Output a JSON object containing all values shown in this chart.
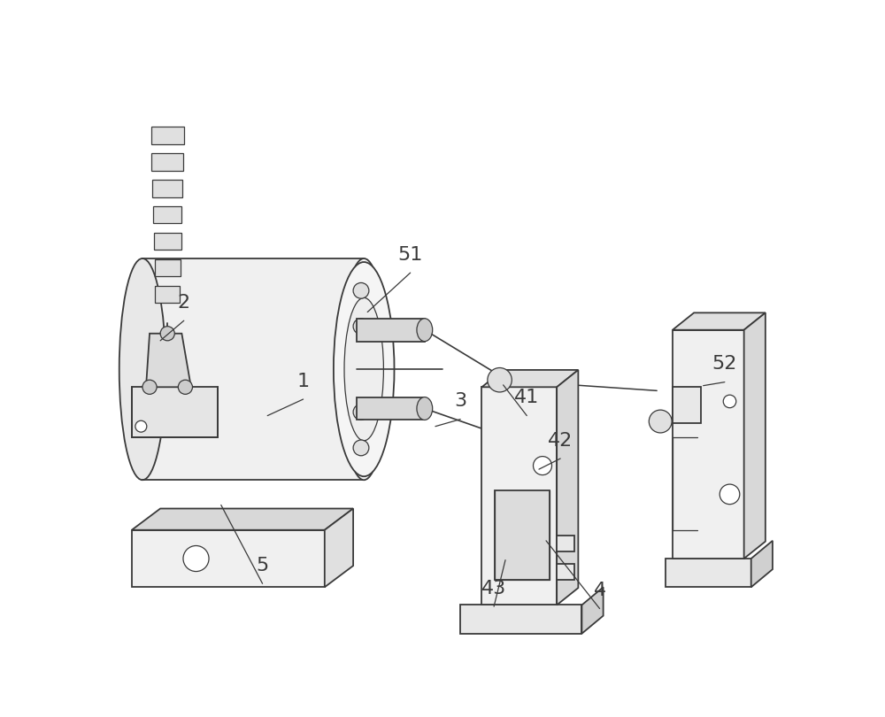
{
  "background_color": "#ffffff",
  "line_color": "#3a3a3a",
  "figure_width": 10.0,
  "figure_height": 8.1,
  "dpi": 100,
  "label_fontsize": 16,
  "label_color": "#3a3a3a"
}
